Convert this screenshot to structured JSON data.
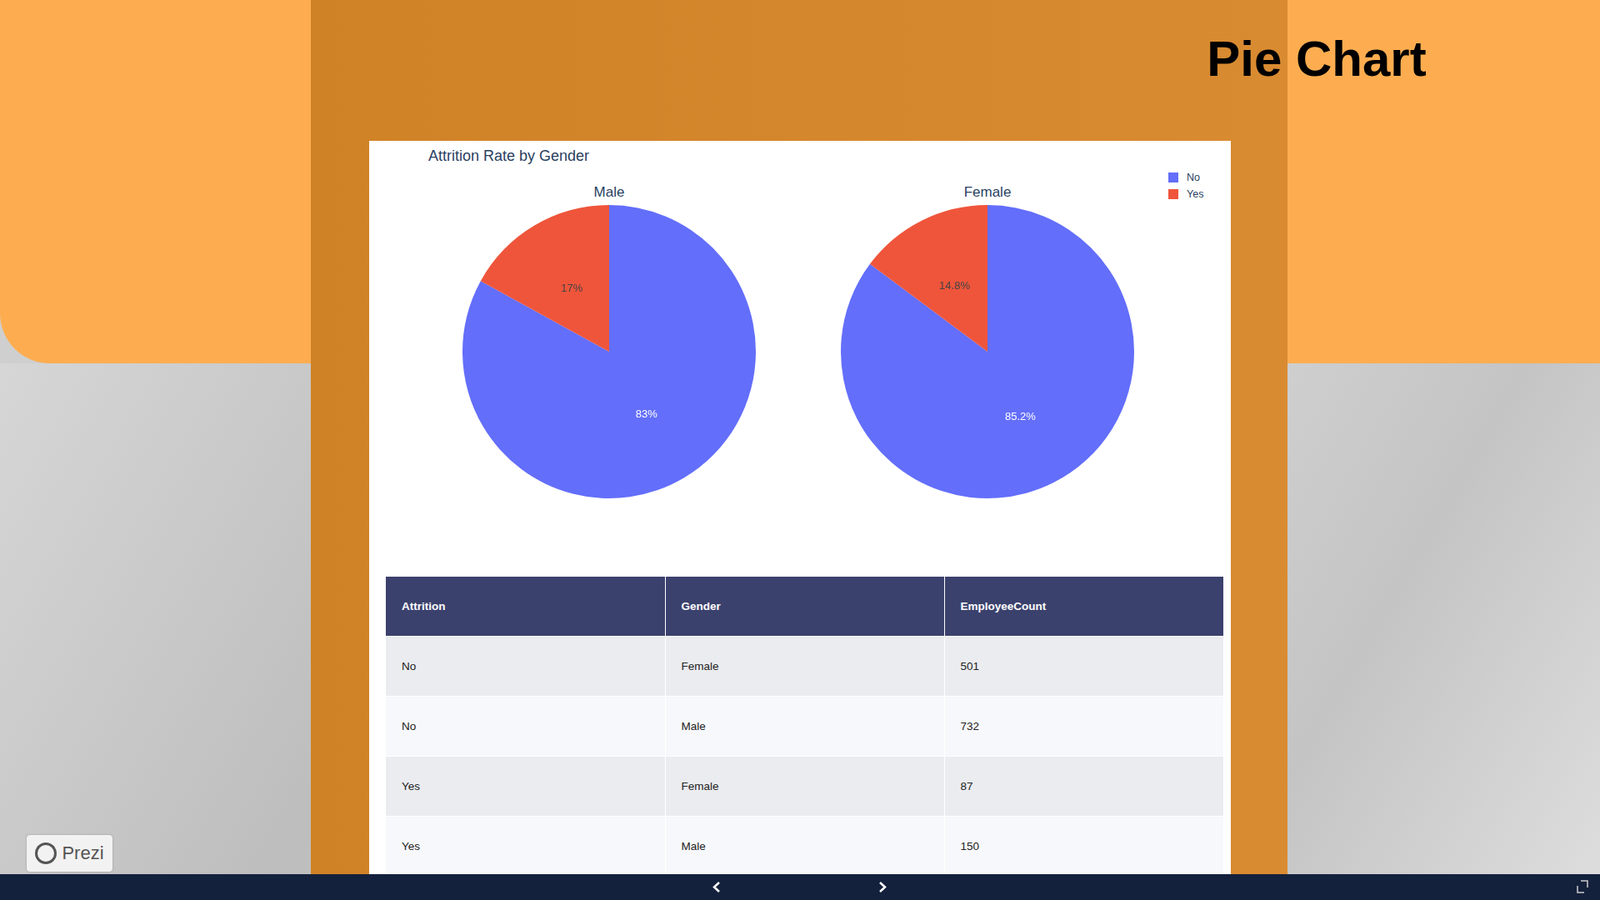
{
  "slide_title": "Pie Chart",
  "badge": "Prezi",
  "figure_title": "Attrition Rate by Gender",
  "chart_data": [
    {
      "type": "pie",
      "title": "Male",
      "categories": [
        "No",
        "Yes"
      ],
      "values": [
        83,
        17
      ],
      "value_labels": [
        "83%",
        "17%"
      ],
      "colors": [
        "#636efa",
        "#ef553b"
      ],
      "data_labels": true
    },
    {
      "type": "pie",
      "title": "Female",
      "categories": [
        "No",
        "Yes"
      ],
      "values": [
        85.2,
        14.8
      ],
      "value_labels": [
        "85.2%",
        "14.8%"
      ],
      "colors": [
        "#636efa",
        "#ef553b"
      ],
      "data_labels": true,
      "legend": "top-right"
    }
  ],
  "table": {
    "columns": [
      "Attrition",
      "Gender",
      "EmployeeCount"
    ],
    "rows": [
      [
        "No",
        "Female",
        501
      ],
      [
        "No",
        "Male",
        732
      ],
      [
        "Yes",
        "Female",
        87
      ],
      [
        "Yes",
        "Male",
        150
      ]
    ]
  }
}
